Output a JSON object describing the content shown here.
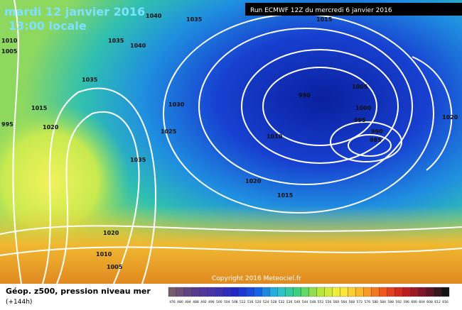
{
  "header": {
    "date": "mardi 12 janvier 2016",
    "time": "13:00 locale",
    "run": "Run ECMWF 12Z du mercredi 6 janvier 2016"
  },
  "map": {
    "copyright": "Copyright 2016 Meteociel.fr",
    "isobar_labels": [
      "1040",
      "1035",
      "1035",
      "1040",
      "1010",
      "1005",
      "1035",
      "1030",
      "1015",
      "990",
      "1005",
      "1000",
      "995",
      "990",
      "985",
      "1020",
      "995",
      "1020",
      "1015",
      "1025",
      "1010",
      "1035",
      "1020",
      "1015",
      "1020",
      "1010",
      "1005"
    ]
  },
  "footer": {
    "title": "Géop. z500, pression niveau mer",
    "lead": "(+144h)",
    "scale_labels": [
      "476",
      "480",
      "484",
      "488",
      "492",
      "496",
      "500",
      "504",
      "508",
      "512",
      "516",
      "520",
      "524",
      "528",
      "532",
      "536",
      "540",
      "544",
      "548",
      "552",
      "556",
      "560",
      "564",
      "568",
      "572",
      "576",
      "580",
      "584",
      "588",
      "592",
      "596",
      "600",
      "604",
      "608",
      "612",
      "616"
    ]
  }
}
